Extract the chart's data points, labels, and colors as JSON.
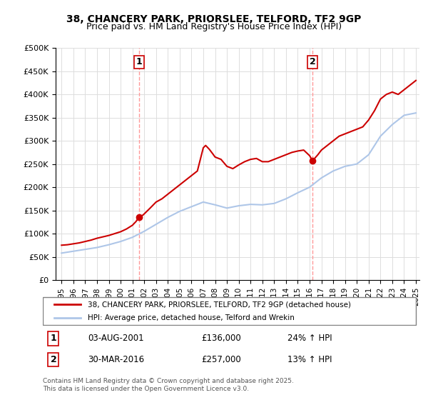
{
  "title_line1": "38, CHANCERY PARK, PRIORSLEE, TELFORD, TF2 9GP",
  "title_line2": "Price paid vs. HM Land Registry's House Price Index (HPI)",
  "legend_label1": "38, CHANCERY PARK, PRIORSLEE, TELFORD, TF2 9GP (detached house)",
  "legend_label2": "HPI: Average price, detached house, Telford and Wrekin",
  "transaction1_date": "03-AUG-2001",
  "transaction1_price": 136000,
  "transaction1_hpi": "24% ↑ HPI",
  "transaction1_label": "1",
  "transaction2_date": "30-MAR-2016",
  "transaction2_price": 257000,
  "transaction2_hpi": "13% ↑ HPI",
  "transaction2_label": "2",
  "footer": "Contains HM Land Registry data © Crown copyright and database right 2025.\nThis data is licensed under the Open Government Licence v3.0.",
  "hpi_color": "#aec6e8",
  "property_color": "#cc0000",
  "vline_color": "#ff9999",
  "marker1_color": "#cc0000",
  "marker2_color": "#cc0000",
  "ylim": [
    0,
    500000
  ],
  "yticks": [
    0,
    50000,
    100000,
    150000,
    200000,
    250000,
    300000,
    350000,
    400000,
    450000,
    500000
  ],
  "ytick_labels": [
    "£0",
    "£50K",
    "£100K",
    "£150K",
    "£200K",
    "£250K",
    "£300K",
    "£350K",
    "£400K",
    "£450K",
    "£500K"
  ],
  "xmin_year": 1995,
  "xmax_year": 2025,
  "xticks": [
    1995,
    1996,
    1997,
    1998,
    1999,
    2000,
    2001,
    2002,
    2003,
    2004,
    2005,
    2006,
    2007,
    2008,
    2009,
    2010,
    2011,
    2012,
    2013,
    2014,
    2015,
    2016,
    2017,
    2018,
    2019,
    2020,
    2021,
    2022,
    2023,
    2024,
    2025
  ],
  "transaction1_x": 2001.58,
  "transaction2_x": 2016.25,
  "hpi_years": [
    1995,
    1996,
    1997,
    1998,
    1999,
    2000,
    2001,
    2002,
    2003,
    2004,
    2005,
    2006,
    2007,
    2008,
    2009,
    2010,
    2011,
    2012,
    2013,
    2014,
    2015,
    2016,
    2017,
    2018,
    2019,
    2020,
    2021,
    2022,
    2023,
    2024,
    2025
  ],
  "hpi_values": [
    58000,
    62000,
    66000,
    70000,
    76000,
    83000,
    92000,
    105000,
    120000,
    135000,
    148000,
    158000,
    168000,
    162000,
    155000,
    160000,
    163000,
    162000,
    165000,
    175000,
    188000,
    200000,
    220000,
    235000,
    245000,
    250000,
    270000,
    310000,
    335000,
    355000,
    360000
  ],
  "property_years": [
    1995,
    1995.5,
    1996,
    1996.5,
    1997,
    1997.5,
    1998,
    1998.5,
    1999,
    1999.5,
    2000,
    2000.5,
    2001,
    2001.3,
    2001.58,
    2001.9,
    2002.5,
    2003,
    2003.5,
    2004,
    2004.5,
    2005,
    2005.5,
    2006,
    2006.5,
    2007,
    2007.2,
    2007.5,
    2007.8,
    2008,
    2008.5,
    2009,
    2009.5,
    2010,
    2010.5,
    2011,
    2011.5,
    2012,
    2012.5,
    2013,
    2013.5,
    2014,
    2014.5,
    2015,
    2015.5,
    2016,
    2016.25,
    2016.7,
    2017,
    2017.5,
    2018,
    2018.5,
    2019,
    2019.5,
    2020,
    2020.5,
    2021,
    2021.5,
    2022,
    2022.5,
    2023,
    2023.5,
    2024,
    2024.5,
    2025
  ],
  "property_values": [
    75000,
    76000,
    78000,
    80000,
    83000,
    86000,
    90000,
    93000,
    96000,
    100000,
    104000,
    110000,
    118000,
    126000,
    136000,
    140000,
    155000,
    168000,
    175000,
    185000,
    195000,
    205000,
    215000,
    225000,
    235000,
    285000,
    290000,
    282000,
    272000,
    265000,
    260000,
    245000,
    240000,
    248000,
    255000,
    260000,
    262000,
    255000,
    255000,
    260000,
    265000,
    270000,
    275000,
    278000,
    280000,
    268000,
    257000,
    270000,
    280000,
    290000,
    300000,
    310000,
    315000,
    320000,
    325000,
    330000,
    345000,
    365000,
    390000,
    400000,
    405000,
    400000,
    410000,
    420000,
    430000
  ]
}
